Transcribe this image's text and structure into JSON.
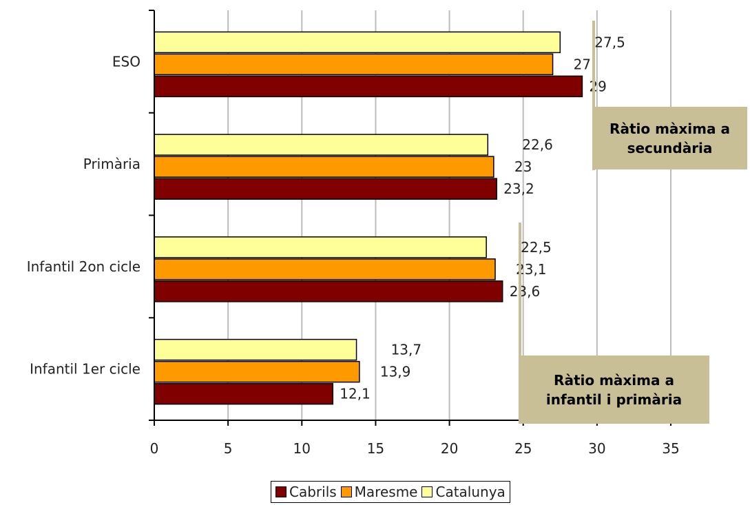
{
  "chart_data": {
    "type": "bar",
    "orientation": "horizontal",
    "categories": [
      "ESO",
      "Primària",
      "Infantil 2on cicle",
      "Infantil 1er cicle"
    ],
    "series": [
      {
        "name": "Catalunya",
        "color": "#ffff99",
        "values": [
          27.5,
          22.6,
          22.5,
          13.7
        ],
        "labels": [
          "27,5",
          "22,6",
          "22,5",
          "13,7"
        ]
      },
      {
        "name": "Maresme",
        "color": "#ff9900",
        "values": [
          27,
          23,
          23.1,
          13.9
        ],
        "labels": [
          "27",
          "23",
          "23,1",
          "13,9"
        ]
      },
      {
        "name": "Cabrils",
        "color": "#800000",
        "values": [
          29,
          23.2,
          23.6,
          12.1
        ],
        "labels": [
          "29",
          "23,2",
          "23,6",
          "12,1"
        ]
      }
    ],
    "xlim": [
      0,
      35
    ],
    "xticks": [
      0,
      5,
      10,
      15,
      20,
      25,
      30,
      35
    ],
    "grid": "vertical",
    "legend_order": [
      "Cabrils",
      "Maresme",
      "Catalunya"
    ],
    "legend_position": "bottom"
  },
  "annotations": [
    {
      "id": "callout-1",
      "text": "Ràtio màxima a secundària"
    },
    {
      "id": "callout-2",
      "text": "Ràtio màxima a infantil i primària"
    }
  ]
}
